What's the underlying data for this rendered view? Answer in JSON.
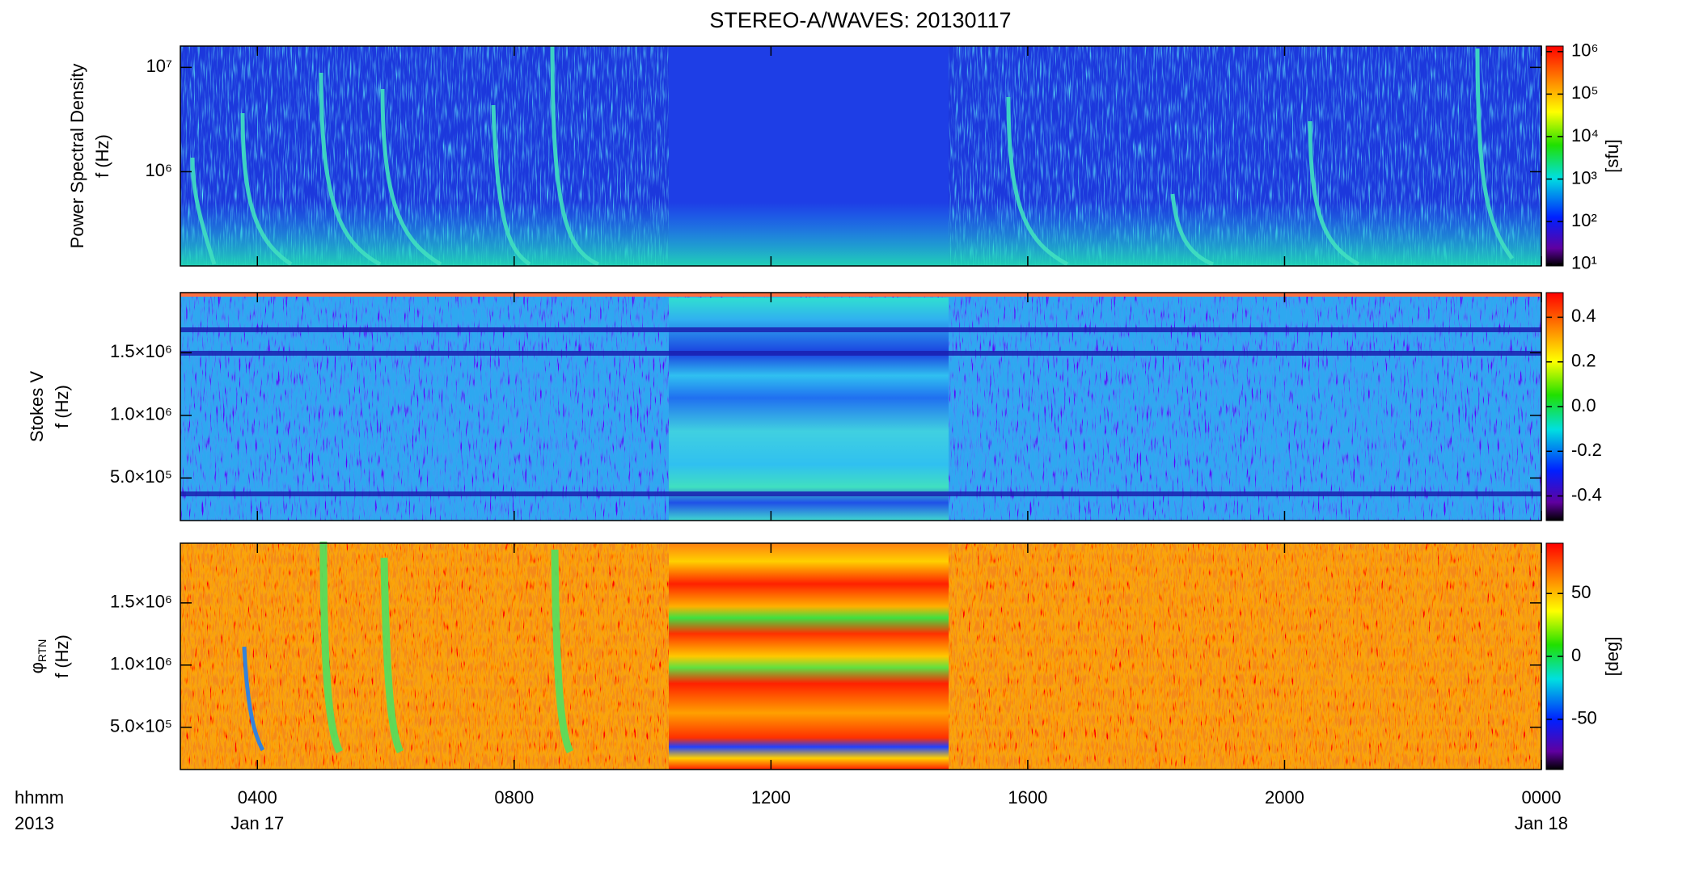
{
  "chart_data": [
    {
      "type": "spectrogram",
      "title": "STEREO-A/WAVES: 20130117",
      "ylabel": {
        "name": "Power Spectral Density",
        "unit": "f (Hz)"
      },
      "log_y": true,
      "ylim": [
        125000,
        16000000
      ],
      "yticks": [
        {
          "value": 1000000,
          "label": "10⁶"
        },
        {
          "value": 10000000,
          "label": "10⁷"
        }
      ],
      "colorbar": {
        "label": "[sfu]",
        "log": true,
        "lim": [
          9,
          1350000
        ],
        "ticks": [
          {
            "value": 10,
            "label": "10¹"
          },
          {
            "value": 100,
            "label": "10²"
          },
          {
            "value": 1000,
            "label": "10³"
          },
          {
            "value": 10000,
            "label": "10⁴"
          },
          {
            "value": 100000,
            "label": "10⁵"
          },
          {
            "value": 1000000,
            "label": "10⁶"
          }
        ]
      }
    },
    {
      "type": "spectrogram",
      "ylabel": {
        "name": "Stokes V",
        "unit": "f (Hz)"
      },
      "ylim": [
        160000,
        1980000
      ],
      "yticks": [
        {
          "value": 500000,
          "label": "5.0×10⁵"
        },
        {
          "value": 1000000,
          "label": "1.0×10⁶"
        },
        {
          "value": 1500000,
          "label": "1.5×10⁶"
        }
      ],
      "colorbar": {
        "lim": [
          -0.51,
          0.51
        ],
        "ticks": [
          -0.4,
          -0.2,
          {
            "value": 0,
            "label": "0.0"
          },
          0.2,
          0.4
        ]
      }
    },
    {
      "type": "spectrogram",
      "ylabel": {
        "name": "φ",
        "subscript": "RTN",
        "unit": "f (Hz)"
      },
      "ylim": [
        160000,
        1980000
      ],
      "yticks": [
        {
          "value": 500000,
          "label": "5.0×10⁵"
        },
        {
          "value": 1000000,
          "label": "1.0×10⁶"
        },
        {
          "value": 1500000,
          "label": "1.5×10⁶"
        }
      ],
      "colorbar": {
        "label": "[deg]",
        "lim": [
          -90,
          90
        ],
        "ticks": [
          -50,
          0,
          50
        ]
      },
      "xlabel": "hhmm",
      "year": "2013",
      "xlim": [
        2.8,
        24
      ],
      "xticks": [
        {
          "value": 4,
          "label": "0400"
        },
        {
          "value": 8,
          "label": "0800"
        },
        {
          "value": 12,
          "label": "1200"
        },
        {
          "value": 16,
          "label": "1600"
        },
        {
          "value": 20,
          "label": "2000"
        },
        {
          "value": 24,
          "label": "0000"
        }
      ],
      "date_labels": [
        {
          "value": 4,
          "label": "Jan 17"
        },
        {
          "value": 24,
          "label": "Jan 18"
        }
      ]
    }
  ]
}
